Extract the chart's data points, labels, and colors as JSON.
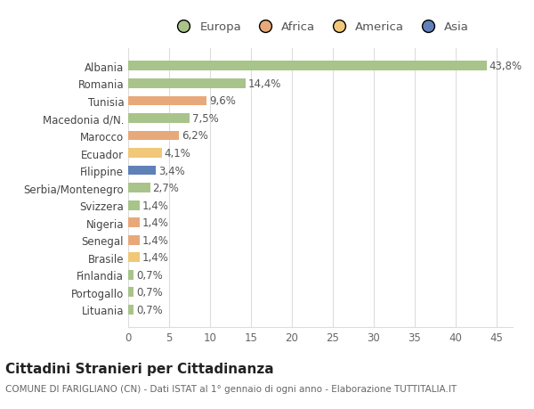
{
  "countries": [
    "Albania",
    "Romania",
    "Tunisia",
    "Macedonia d/N.",
    "Marocco",
    "Ecuador",
    "Filippine",
    "Serbia/Montenegro",
    "Svizzera",
    "Nigeria",
    "Senegal",
    "Brasile",
    "Finlandia",
    "Portogallo",
    "Lituania"
  ],
  "values": [
    43.8,
    14.4,
    9.6,
    7.5,
    6.2,
    4.1,
    3.4,
    2.7,
    1.4,
    1.4,
    1.4,
    1.4,
    0.7,
    0.7,
    0.7
  ],
  "labels": [
    "43,8%",
    "14,4%",
    "9,6%",
    "7,5%",
    "6,2%",
    "4,1%",
    "3,4%",
    "2,7%",
    "1,4%",
    "1,4%",
    "1,4%",
    "1,4%",
    "0,7%",
    "0,7%",
    "0,7%"
  ],
  "colors": [
    "#a8c48a",
    "#a8c48a",
    "#e8a97a",
    "#a8c48a",
    "#e8a97a",
    "#f0c878",
    "#6080b8",
    "#a8c48a",
    "#a8c48a",
    "#e8a97a",
    "#e8a97a",
    "#f0c878",
    "#a8c48a",
    "#a8c48a",
    "#a8c48a"
  ],
  "legend": {
    "Europa": "#a8c48a",
    "Africa": "#e8a97a",
    "America": "#f0c878",
    "Asia": "#6080b8"
  },
  "title": "Cittadini Stranieri per Cittadinanza",
  "subtitle": "COMUNE DI FARIGLIANO (CN) - Dati ISTAT al 1° gennaio di ogni anno - Elaborazione TUTTITALIA.IT",
  "xlim": [
    0,
    47
  ],
  "xticks": [
    0,
    5,
    10,
    15,
    20,
    25,
    30,
    35,
    40,
    45
  ],
  "background_color": "#ffffff",
  "grid_color": "#dddddd",
  "bar_height": 0.55,
  "label_fontsize": 8.5,
  "tick_fontsize": 8.5,
  "title_fontsize": 11,
  "subtitle_fontsize": 7.5
}
